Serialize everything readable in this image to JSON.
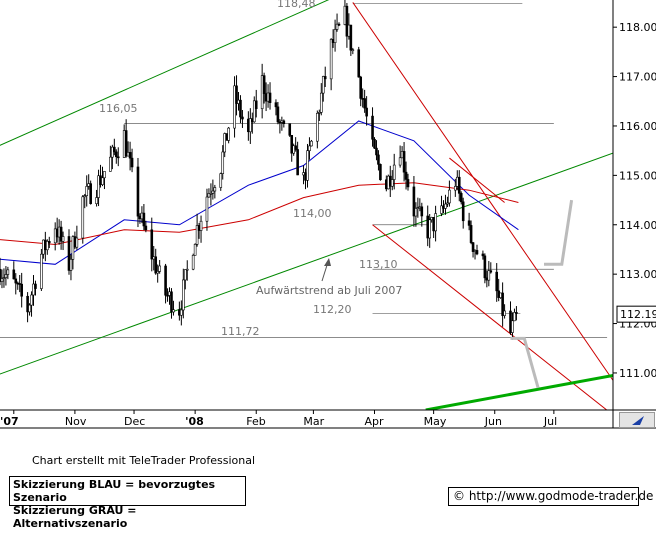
{
  "chart_data": {
    "type": "candlestick",
    "instrument_hint": "Bund-Future style chart",
    "y_axis": {
      "ticks": [
        "118.00",
        "117.00",
        "116.00",
        "115.00",
        "114.00",
        "113.00",
        "112.00",
        "111.00"
      ],
      "ylim": [
        110.25,
        118.55
      ],
      "current_value_label": "112.19",
      "position": "right"
    },
    "x_axis": {
      "tick_labels": [
        "'07",
        "Nov",
        "Dec",
        "'08",
        "Feb",
        "Mar",
        "Apr",
        "May",
        "Jun",
        "Jul"
      ],
      "start_date": "2007-09-24",
      "end_date": "2008-07-31"
    },
    "level_labels": [
      {
        "text": "118,48",
        "value": 118.48
      },
      {
        "text": "116,05",
        "value": 116.05
      },
      {
        "text": "114,00",
        "value": 114.0
      },
      {
        "text": "113,10",
        "value": 113.1
      },
      {
        "text": "112,20",
        "value": 112.2
      },
      {
        "text": "111,72",
        "value": 111.72
      }
    ],
    "annotation": "Aufwärtstrend ab Juli 2007",
    "price_path": [
      [
        "2007-09-24",
        113.1
      ],
      [
        "2007-10-01",
        112.8
      ],
      [
        "2007-10-08",
        112.3
      ],
      [
        "2007-10-15",
        113.4
      ],
      [
        "2007-10-22",
        114.0
      ],
      [
        "2007-10-29",
        113.2
      ],
      [
        "2007-11-05",
        114.5
      ],
      [
        "2007-11-12",
        114.8
      ],
      [
        "2007-11-19",
        115.3
      ],
      [
        "2007-11-26",
        115.8
      ],
      [
        "2007-12-03",
        114.3
      ],
      [
        "2007-12-10",
        113.4
      ],
      [
        "2007-12-17",
        112.6
      ],
      [
        "2007-12-24",
        112.3
      ],
      [
        "2008-01-01",
        113.8
      ],
      [
        "2008-01-07",
        114.6
      ],
      [
        "2008-01-14",
        115.2
      ],
      [
        "2008-01-21",
        116.6
      ],
      [
        "2008-01-28",
        115.8
      ],
      [
        "2008-02-04",
        116.9
      ],
      [
        "2008-02-11",
        116.2
      ],
      [
        "2008-02-18",
        115.6
      ],
      [
        "2008-02-25",
        114.9
      ],
      [
        "2008-03-03",
        116.2
      ],
      [
        "2008-03-10",
        117.6
      ],
      [
        "2008-03-17",
        118.2
      ],
      [
        "2008-03-24",
        117.0
      ],
      [
        "2008-03-31",
        115.5
      ],
      [
        "2008-04-07",
        114.8
      ],
      [
        "2008-04-14",
        115.6
      ],
      [
        "2008-04-21",
        114.3
      ],
      [
        "2008-04-28",
        113.9
      ],
      [
        "2008-05-05",
        114.2
      ],
      [
        "2008-05-12",
        114.9
      ],
      [
        "2008-05-19",
        113.8
      ],
      [
        "2008-05-26",
        113.2
      ],
      [
        "2008-06-02",
        112.6
      ],
      [
        "2008-06-09",
        111.8
      ],
      [
        "2008-06-13",
        112.2
      ]
    ],
    "moving_averages": [
      {
        "color": "#0000cc",
        "points": [
          [
            "2007-09-24",
            113.3
          ],
          [
            "2007-10-22",
            113.2
          ],
          [
            "2007-11-26",
            114.1
          ],
          [
            "2007-12-24",
            114.0
          ],
          [
            "2008-01-28",
            114.8
          ],
          [
            "2008-02-25",
            115.2
          ],
          [
            "2008-03-24",
            116.1
          ],
          [
            "2008-04-21",
            115.7
          ],
          [
            "2008-05-19",
            114.6
          ],
          [
            "2008-06-13",
            113.9
          ]
        ]
      },
      {
        "color": "#cc0000",
        "points": [
          [
            "2007-09-24",
            113.7
          ],
          [
            "2007-10-22",
            113.6
          ],
          [
            "2007-11-26",
            113.9
          ],
          [
            "2007-12-24",
            113.85
          ],
          [
            "2008-01-28",
            114.1
          ],
          [
            "2008-02-25",
            114.55
          ],
          [
            "2008-03-24",
            114.8
          ],
          [
            "2008-04-21",
            114.85
          ],
          [
            "2008-05-19",
            114.7
          ],
          [
            "2008-06-13",
            114.45
          ]
        ]
      }
    ],
    "trend_lines": [
      {
        "color": "#008800",
        "from": [
          "2007-09-15",
          115.45
        ],
        "to": [
          "2008-03-31",
          118.95
        ]
      },
      {
        "color": "#008800",
        "from": [
          "2007-09-15",
          110.85
        ],
        "to": [
          "2008-07-31",
          115.45
        ]
      },
      {
        "color": "#cc0000",
        "from": [
          "2008-03-21",
          118.5
        ],
        "to": [
          "2008-07-31",
          110.85
        ]
      },
      {
        "color": "#cc0000",
        "from": [
          "2008-03-31",
          114.0
        ],
        "to": [
          "2008-07-31",
          110.15
        ]
      },
      {
        "color": "#cc0000",
        "from": [
          "2008-05-09",
          115.35
        ],
        "to": [
          "2008-06-06",
          114.45
        ]
      },
      {
        "color": "#00aa00",
        "width": 3,
        "from": [
          "2008-04-27",
          110.25
        ],
        "to": [
          "2008-07-31",
          110.95
        ]
      }
    ],
    "scenario_sketches": [
      {
        "color": "#bbbbbb",
        "points": [
          [
            "2008-06-09",
            111.7
          ],
          [
            "2008-06-16",
            111.7
          ],
          [
            "2008-06-23",
            110.7
          ]
        ]
      },
      {
        "color": "#bbbbbb",
        "points": [
          [
            "2008-06-26",
            113.2
          ],
          [
            "2008-07-05",
            113.2
          ],
          [
            "2008-07-10",
            114.5
          ]
        ]
      }
    ]
  },
  "footer": {
    "credit": "Chart erstellt mit TeleTrader Professional",
    "legend_line1": "Skizzierung BLAU = bevorzugtes Szenario",
    "legend_line2": "Skizzierung GRAU = Alternativszenario",
    "copyright_symbol": "©",
    "url": "http://www.godmode-trader.de"
  }
}
